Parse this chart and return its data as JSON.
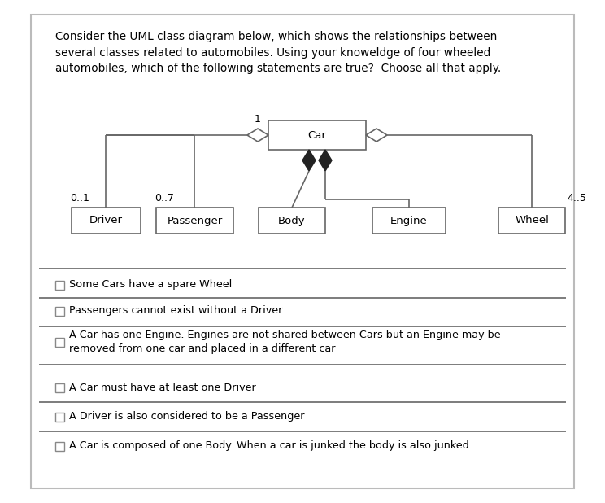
{
  "bg_color": "#ffffff",
  "border_color": "#999999",
  "line_color": "#666666",
  "box_edge_color": "#666666",
  "title": "Consider the UML class diagram below, which shows the relationships between\nseveral classes related to automobiles. Using your knoweldge of four wheeled\nautomobiles, which of the following statements are true?  Choose all that apply.",
  "title_fontsize": 9.8,
  "car_label": "Car",
  "classes": [
    "Driver",
    "Passenger",
    "Body",
    "Engine",
    "Wheel"
  ],
  "mult_left1": "0..1",
  "mult_left2": "0..7",
  "mult_right": "4..5",
  "mult_car_left": "1",
  "options": [
    "Some Cars have a spare Wheel",
    "Passengers cannot exist without a Driver",
    "A Car has one Engine. Engines are not shared between Cars but an Engine may be\nremoved from one car and placed in a different car",
    "A Car must have at least one Driver",
    "A Driver is also considered to be a Passenger",
    "A Car is composed of one Body. When a car is junked the body is also junked"
  ]
}
